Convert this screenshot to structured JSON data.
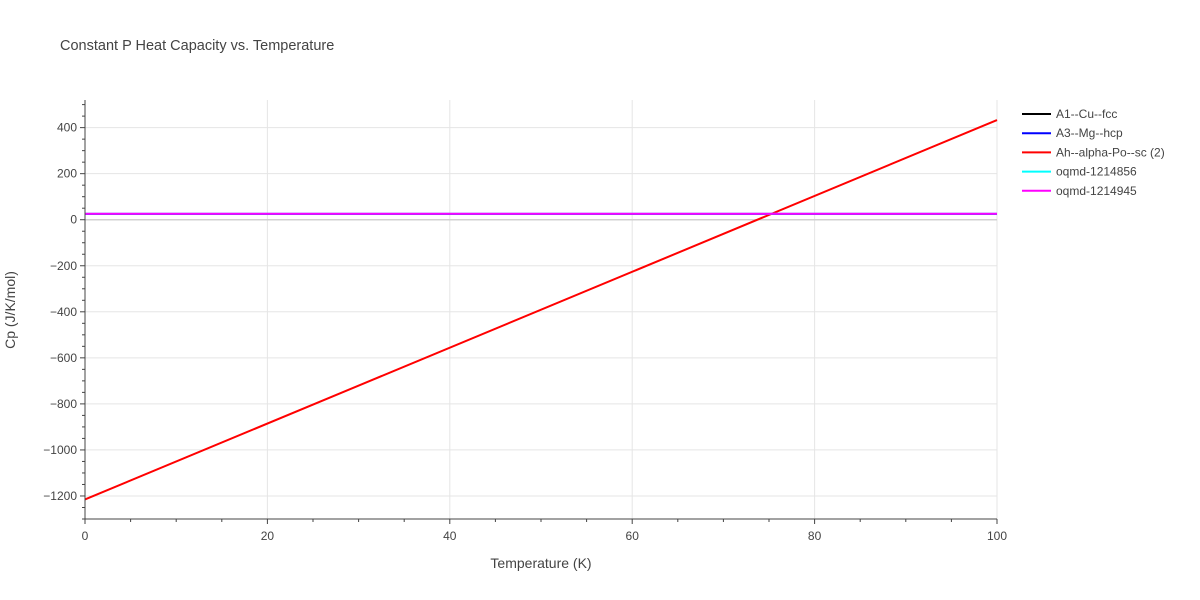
{
  "chart_data": {
    "type": "line",
    "title": "Constant P Heat Capacity vs. Temperature",
    "xlabel": "Temperature (K)",
    "ylabel": "Cp (J/K/mol)",
    "xlim": [
      0,
      100
    ],
    "ylim": [
      -1300,
      520
    ],
    "x_ticks": [
      0,
      20,
      40,
      60,
      80,
      100
    ],
    "x_tick_labels": [
      "0",
      "20",
      "40",
      "60",
      "80",
      "100"
    ],
    "y_ticks": [
      -1200,
      -1000,
      -800,
      -600,
      -400,
      -200,
      0,
      200,
      400
    ],
    "y_tick_labels": [
      "−1200",
      "−1000",
      "−800",
      "−600",
      "−400",
      "−200",
      "0",
      "200",
      "400"
    ],
    "grid": true,
    "legend_position": "top-right",
    "series": [
      {
        "name": "A1--Cu--fcc",
        "color": "#000000",
        "x": [
          0,
          100
        ],
        "y": [
          25,
          25
        ]
      },
      {
        "name": "A3--Mg--hcp",
        "color": "#0000ff",
        "x": [
          0,
          100
        ],
        "y": [
          25,
          25
        ]
      },
      {
        "name": "Ah--alpha-Po--sc (2)",
        "color": "#ff0000",
        "x": [
          0,
          100
        ],
        "y": [
          -1215,
          433
        ]
      },
      {
        "name": "oqmd-1214856",
        "color": "#00ffff",
        "x": [
          0,
          100
        ],
        "y": [
          26,
          26
        ]
      },
      {
        "name": "oqmd-1214945",
        "color": "#ff00ff",
        "x": [
          0,
          100
        ],
        "y": [
          26,
          26
        ]
      }
    ]
  }
}
